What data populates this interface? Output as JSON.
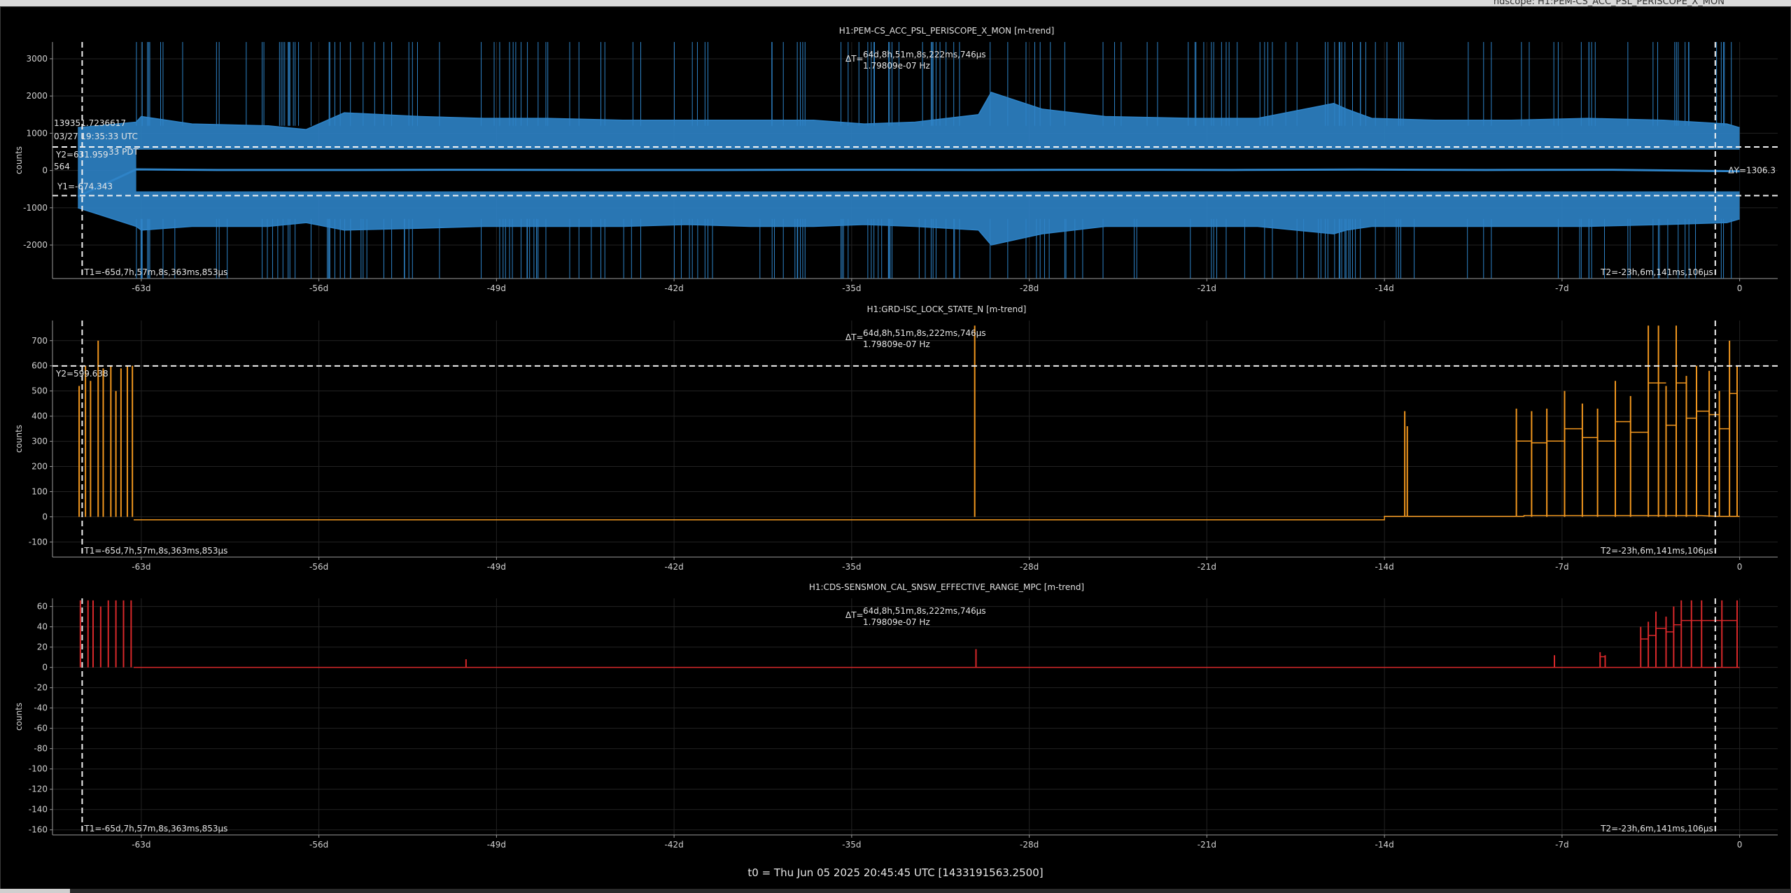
{
  "window": {
    "title": "ndscope: H1:PEM-CS_ACC_PSL_PERISCOPE_X_MON"
  },
  "footer": {
    "t0": "t0 = Thu Jun 05 2025 20:45:45 UTC [1433191563.2500]"
  },
  "chart_data": [
    {
      "type": "line",
      "title": "H1:PEM-CS_ACC_PSL_PERISCOPE_X_MON [m-trend]",
      "xlabel": "",
      "ylabel": "counts",
      "color": "#2e83c7",
      "xlim": [
        -66.5,
        1.5
      ],
      "ylim": [
        -2900,
        3450
      ],
      "x_ticks": [
        -63,
        -56,
        -49,
        -42,
        -35,
        -28,
        -21,
        -14,
        -7,
        0
      ],
      "x_tick_labels": [
        "-63d",
        "-56d",
        "-49d",
        "-42d",
        "-35d",
        "-28d",
        "-21d",
        "-14d",
        "-7d",
        "0"
      ],
      "y_ticks": [
        -2000,
        -1000,
        0,
        1000,
        2000,
        3000
      ],
      "y_tick_labels": [
        "-2000",
        "-1000",
        "0",
        "1000",
        "2000",
        "3000"
      ],
      "grid": true,
      "series": [
        {
          "role": "max",
          "x": [
            -65.5,
            -63.2,
            -63.0,
            -61.0,
            -58.0,
            -56.5,
            -55.0,
            -52.0,
            -49.5,
            -47.0,
            -44.0,
            -41.5,
            -39.0,
            -36.5,
            -34.5,
            -32.5,
            -30.0,
            -29.5,
            -27.5,
            -25.0,
            -21.5,
            -19.0,
            -16.0,
            -15.5,
            -14.5,
            -12.0,
            -9.0,
            -6.0,
            -3.0,
            -0.5,
            0
          ],
          "y": [
            1150,
            1300,
            1450,
            1250,
            1200,
            1100,
            1550,
            1450,
            1400,
            1400,
            1350,
            1350,
            1350,
            1350,
            1250,
            1300,
            1500,
            2100,
            1650,
            1450,
            1400,
            1400,
            1800,
            1650,
            1400,
            1350,
            1350,
            1400,
            1350,
            1250,
            1150
          ]
        },
        {
          "role": "mean",
          "x": [
            -65.5,
            -63.2,
            -60.0,
            -55.0,
            -50.0,
            -45.0,
            -40.0,
            -35.0,
            -30.0,
            -25.0,
            -20.0,
            -15.0,
            -10.0,
            -5.0,
            0
          ],
          "y": [
            -700,
            30,
            15,
            15,
            20,
            15,
            15,
            20,
            15,
            20,
            15,
            25,
            15,
            20,
            -20
          ]
        },
        {
          "role": "min",
          "x": [
            -65.5,
            -63.2,
            -63.0,
            -61.0,
            -58.0,
            -56.5,
            -55.0,
            -52.0,
            -49.5,
            -47.0,
            -44.0,
            -41.5,
            -39.0,
            -36.5,
            -34.5,
            -32.5,
            -30.0,
            -29.5,
            -27.5,
            -25.0,
            -21.5,
            -19.0,
            -16.0,
            -15.5,
            -14.5,
            -12.0,
            -9.0,
            -6.0,
            -3.0,
            -0.5,
            0
          ],
          "y": [
            -1000,
            -1500,
            -1600,
            -1500,
            -1500,
            -1400,
            -1600,
            -1550,
            -1500,
            -1500,
            -1500,
            -1450,
            -1500,
            -1500,
            -1450,
            -1500,
            -1600,
            -2000,
            -1700,
            -1500,
            -1500,
            -1500,
            -1700,
            -1600,
            -1500,
            -1500,
            -1500,
            -1500,
            -1450,
            -1400,
            -1300
          ]
        }
      ],
      "cursors": {
        "T1": "T1=-65d,7h,57m,8s,363ms,853µs",
        "T2": "T2=-23h,6m,141ms,106µs",
        "dT": "ΔT=",
        "dT_value": "64d,8h,51m,8s,222ms,746µs",
        "dT_freq": "1.79809e-07 Hz",
        "t1_x": -65.33,
        "t2_x": -0.96,
        "Y1": "Y1=-674.343",
        "Y2": "Y2=631.959",
        "y1_value": -674.343,
        "y2_value": 631.959,
        "dY": "ΔY=1306.3"
      },
      "annotations": [
        "139351.7236617",
        "03/27 19:35:33 UTC",
        "33 PDT",
        "564"
      ]
    },
    {
      "type": "line",
      "title": "H1:GRD-ISC_LOCK_STATE_N [m-trend]",
      "xlabel": "",
      "ylabel": "counts",
      "color": "#f0961e",
      "xlim": [
        -66.5,
        1.5
      ],
      "ylim": [
        -160,
        780
      ],
      "x_ticks": [
        -63,
        -56,
        -49,
        -42,
        -35,
        -28,
        -21,
        -14,
        -7,
        0
      ],
      "x_tick_labels": [
        "-63d",
        "-56d",
        "-49d",
        "-42d",
        "-35d",
        "-28d",
        "-21d",
        "-14d",
        "-7d",
        "0"
      ],
      "y_ticks": [
        -100,
        0,
        100,
        200,
        300,
        400,
        500,
        600,
        700
      ],
      "y_tick_labels": [
        "-100",
        "0",
        "100",
        "200",
        "300",
        "400",
        "500",
        "600",
        "700"
      ],
      "grid": true,
      "series": [
        {
          "role": "spikes",
          "x": [
            -65.45,
            -65.2,
            -65.0,
            -64.7,
            -64.5,
            -64.2,
            -64.0,
            -63.8,
            -63.55,
            -63.35,
            -30.15,
            -13.2,
            -13.1,
            -8.8,
            -8.2,
            -7.6,
            -6.9,
            -6.2,
            -5.6,
            -4.9,
            -4.3,
            -3.6,
            -3.2,
            -2.9,
            -2.5,
            -2.1,
            -1.7,
            -1.2,
            -0.8,
            -0.4,
            -0.1
          ],
          "y": [
            520,
            600,
            540,
            700,
            590,
            600,
            500,
            590,
            600,
            600,
            760,
            420,
            360,
            430,
            420,
            430,
            500,
            450,
            430,
            540,
            480,
            760,
            760,
            520,
            760,
            560,
            600,
            580,
            500,
            700,
            600
          ]
        },
        {
          "role": "baseline",
          "x": [
            -63.3,
            -14.0,
            -14.0,
            -8.5,
            -8.5,
            -1.5,
            -0.9,
            0
          ],
          "y": [
            -12,
            -12,
            2,
            2,
            5,
            5,
            2,
            2
          ]
        }
      ],
      "cursors": {
        "T1": "T1=-65d,7h,57m,8s,363ms,853µs",
        "T2": "T2=-23h,6m,141ms,106µs",
        "dT": "ΔT=",
        "dT_value": "64d,8h,51m,8s,222ms,746µs",
        "dT_freq": "1.79809e-07 Hz",
        "t1_x": -65.33,
        "t2_x": -0.96,
        "Y2": "Y2=599.638",
        "y2_value": 599.638
      }
    },
    {
      "type": "line",
      "title": "H1:CDS-SENSMON_CAL_SNSW_EFFECTIVE_RANGE_MPC [m-trend]",
      "xlabel": "",
      "ylabel": "counts",
      "color": "#d8282a",
      "xlim": [
        -66.5,
        1.5
      ],
      "ylim": [
        -165,
        68
      ],
      "x_ticks": [
        -63,
        -56,
        -49,
        -42,
        -35,
        -28,
        -21,
        -14,
        -7,
        0
      ],
      "x_tick_labels": [
        "-63d",
        "-56d",
        "-49d",
        "-42d",
        "-35d",
        "-28d",
        "-21d",
        "-14d",
        "-7d",
        "0"
      ],
      "y_ticks": [
        -160,
        -140,
        -120,
        -100,
        -80,
        -60,
        -40,
        -20,
        0,
        20,
        40,
        60
      ],
      "y_tick_labels": [
        "-160",
        "-140",
        "-120",
        "-100",
        "-80",
        "-60",
        "-40",
        "-20",
        "0",
        "20",
        "40",
        "60"
      ],
      "grid": true,
      "series": [
        {
          "role": "spikes",
          "x": [
            -65.4,
            -65.1,
            -64.9,
            -64.6,
            -64.3,
            -64.0,
            -63.7,
            -63.4,
            -50.2,
            -30.1,
            -7.3,
            -5.5,
            -5.3,
            -3.9,
            -3.6,
            -3.3,
            -2.9,
            -2.6,
            -2.3,
            -1.9,
            -1.5,
            -0.7,
            -0.1
          ],
          "y": [
            66,
            66,
            66,
            60,
            66,
            66,
            66,
            66,
            8,
            18,
            12,
            15,
            12,
            40,
            45,
            55,
            50,
            60,
            66,
            66,
            66,
            66,
            66
          ]
        },
        {
          "role": "baseline",
          "x": [
            -63.3,
            0
          ],
          "y": [
            0,
            0
          ]
        }
      ],
      "cursors": {
        "T1": "T1=-65d,7h,57m,8s,363ms,853µs",
        "T2": "T2=-23h,6m,141ms,106µs",
        "dT": "ΔT=",
        "dT_value": "64d,8h,51m,8s,222ms,746µs",
        "dT_freq": "1.79809e-07 Hz",
        "t1_x": -65.33,
        "t2_x": -0.96
      }
    }
  ]
}
